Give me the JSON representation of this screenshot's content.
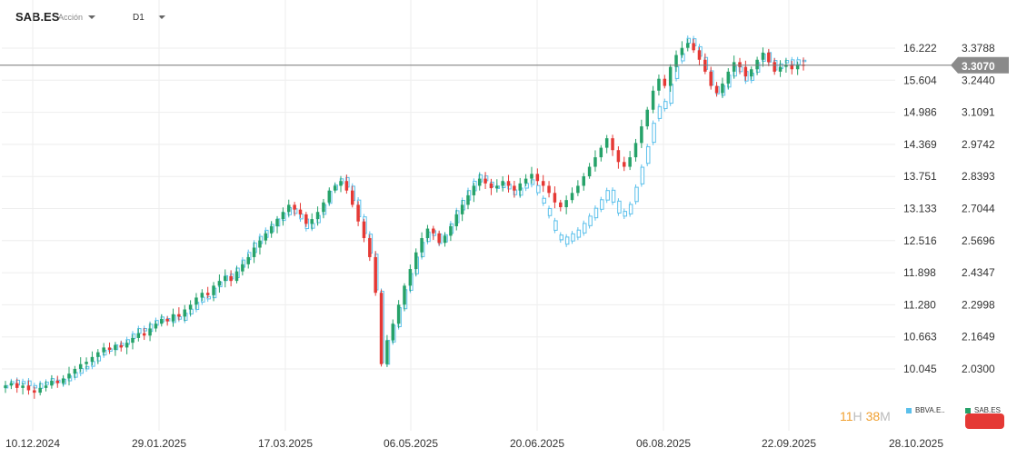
{
  "header": {
    "symbol": "SAB.ES",
    "instrument_type": "Acción",
    "timeframe": "D1"
  },
  "timer": {
    "hours": "11",
    "h_unit": "H",
    "minutes": "38",
    "m_unit": "M"
  },
  "colors": {
    "up": "#26a269",
    "down": "#e53935",
    "compare": "#5bc0eb",
    "price_line": "#777777",
    "tag_bg": "#8a8a8a",
    "grid": "#eeeeee"
  },
  "chart_data": {
    "type": "candlestick",
    "primary_series": "SAB.ES",
    "compare_series": "BBVA.E..",
    "legend": [
      "BBVA.E..",
      "SAB.ES"
    ],
    "current_price": "3.3070",
    "current_price_value": 3.307,
    "y_axis_left": [
      "16.222",
      "15.604",
      "14.986",
      "14.369",
      "13.751",
      "13.133",
      "12.516",
      "11.898",
      "11.280",
      "10.663",
      "10.045"
    ],
    "y_axis_right": [
      "3.3788",
      "3.2440",
      "3.1091",
      "2.9742",
      "2.8393",
      "2.7044",
      "2.5696",
      "2.4347",
      "2.2998",
      "2.1649",
      "2.0300"
    ],
    "x_axis_labels": [
      "10.12.2024",
      "29.01.2025",
      "17.03.2025",
      "06.05.2025",
      "20.06.2025",
      "06.08.2025",
      "22.09.2025",
      "28.10.2025"
    ],
    "ylim_right": [
      1.93,
      3.47
    ],
    "grid": true,
    "closes": [
      1.96,
      1.97,
      1.95,
      1.96,
      1.94,
      1.93,
      1.95,
      1.96,
      1.98,
      1.97,
      1.99,
      2.01,
      2.03,
      2.05,
      2.06,
      2.08,
      2.1,
      2.12,
      2.11,
      2.13,
      2.12,
      2.14,
      2.16,
      2.18,
      2.17,
      2.2,
      2.22,
      2.24,
      2.23,
      2.26,
      2.25,
      2.28,
      2.3,
      2.33,
      2.35,
      2.34,
      2.38,
      2.4,
      2.42,
      2.4,
      2.44,
      2.47,
      2.5,
      2.54,
      2.57,
      2.6,
      2.63,
      2.66,
      2.69,
      2.72,
      2.7,
      2.68,
      2.64,
      2.66,
      2.69,
      2.73,
      2.78,
      2.8,
      2.82,
      2.78,
      2.72,
      2.65,
      2.58,
      2.5,
      2.35,
      2.05,
      2.15,
      2.22,
      2.3,
      2.38,
      2.45,
      2.52,
      2.58,
      2.62,
      2.6,
      2.56,
      2.59,
      2.63,
      2.68,
      2.72,
      2.76,
      2.8,
      2.83,
      2.81,
      2.79,
      2.8,
      2.82,
      2.8,
      2.78,
      2.81,
      2.83,
      2.85,
      2.82,
      2.8,
      2.77,
      2.73,
      2.71,
      2.74,
      2.77,
      2.8,
      2.84,
      2.88,
      2.92,
      2.96,
      3.0,
      2.95,
      2.9,
      2.88,
      2.92,
      2.98,
      3.05,
      3.12,
      3.2,
      3.25,
      3.22,
      3.3,
      3.35,
      3.38,
      3.4,
      3.37,
      3.33,
      3.28,
      3.22,
      3.19,
      3.23,
      3.28,
      3.32,
      3.3,
      3.26,
      3.29,
      3.33,
      3.36,
      3.32,
      3.28,
      3.3,
      3.31,
      3.29,
      3.31,
      3.307
    ]
  }
}
